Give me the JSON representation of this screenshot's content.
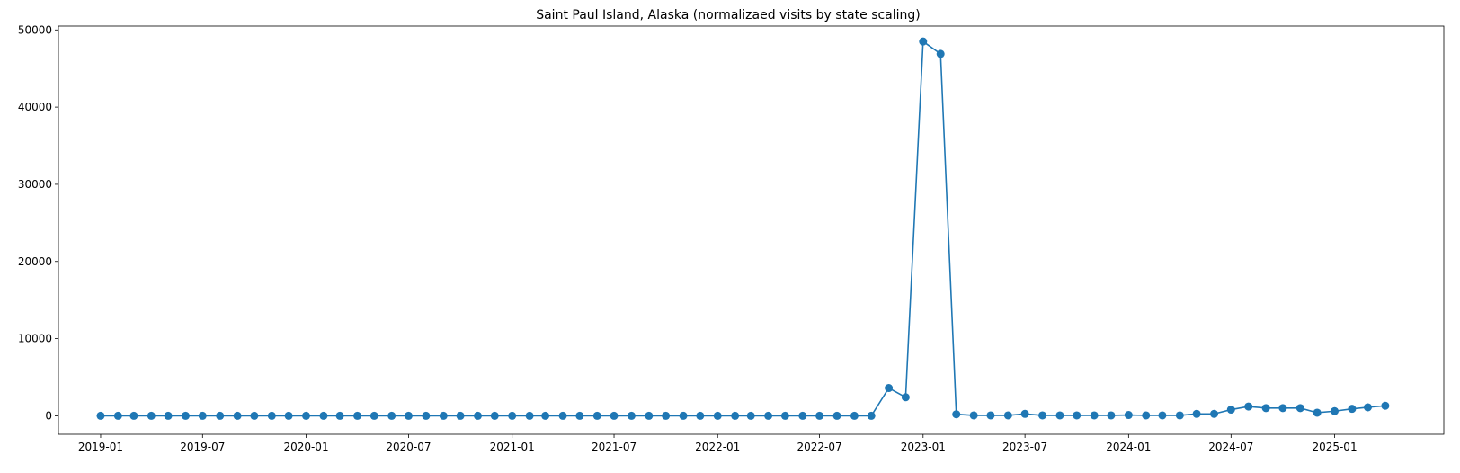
{
  "chart_data": {
    "type": "line",
    "title": "Saint Paul Island, Alaska (normalizaed visits by state scaling)",
    "xlabel": "",
    "ylabel": "",
    "color": "#1f77b4",
    "marker": "circle",
    "grid": false,
    "legend": "none",
    "xlim": [
      "2018-10-18",
      "2025-07-14"
    ],
    "ylim": [
      -2400,
      50500
    ],
    "x_ticks": [
      "2019-01",
      "2019-07",
      "2020-01",
      "2020-07",
      "2021-01",
      "2021-07",
      "2022-01",
      "2022-07",
      "2023-01",
      "2023-07",
      "2024-01",
      "2024-07",
      "2025-01"
    ],
    "y_ticks": [
      0,
      10000,
      20000,
      30000,
      40000,
      50000
    ],
    "series": [
      {
        "x": [
          "2019-01",
          "2019-02",
          "2019-03",
          "2019-04",
          "2019-05",
          "2019-06",
          "2019-07",
          "2019-08",
          "2019-09",
          "2019-10",
          "2019-11",
          "2019-12",
          "2020-01",
          "2020-02",
          "2020-03",
          "2020-04",
          "2020-05",
          "2020-06",
          "2020-07",
          "2020-08",
          "2020-09",
          "2020-10",
          "2020-11",
          "2020-12",
          "2021-01",
          "2021-02",
          "2021-03",
          "2021-04",
          "2021-05",
          "2021-06",
          "2021-07",
          "2021-08",
          "2021-09",
          "2021-10",
          "2021-11",
          "2021-12",
          "2022-01",
          "2022-02",
          "2022-03",
          "2022-04",
          "2022-05",
          "2022-06",
          "2022-07",
          "2022-08",
          "2022-09",
          "2022-10",
          "2022-11",
          "2022-12",
          "2023-01",
          "2023-02",
          "2023-03",
          "2023-04",
          "2023-05",
          "2023-06",
          "2023-07",
          "2023-08",
          "2023-09",
          "2023-10",
          "2023-11",
          "2023-12",
          "2024-01",
          "2024-02",
          "2024-03",
          "2024-04",
          "2024-05",
          "2024-06",
          "2024-07",
          "2024-08",
          "2024-09",
          "2024-10",
          "2024-11",
          "2024-12",
          "2025-01",
          "2025-02",
          "2025-03",
          "2025-04"
        ],
        "values": [
          0,
          0,
          0,
          0,
          0,
          0,
          0,
          0,
          0,
          0,
          0,
          0,
          0,
          0,
          0,
          0,
          0,
          0,
          0,
          0,
          0,
          0,
          0,
          0,
          0,
          0,
          0,
          0,
          0,
          0,
          0,
          0,
          0,
          0,
          0,
          0,
          0,
          0,
          0,
          0,
          0,
          0,
          0,
          0,
          0,
          0,
          3600,
          2400,
          48500,
          46900,
          200,
          50,
          50,
          50,
          250,
          50,
          50,
          50,
          50,
          50,
          100,
          50,
          50,
          50,
          250,
          250,
          800,
          1200,
          1000,
          1000,
          1000,
          400,
          600,
          900,
          1100,
          1300
        ]
      }
    ]
  }
}
